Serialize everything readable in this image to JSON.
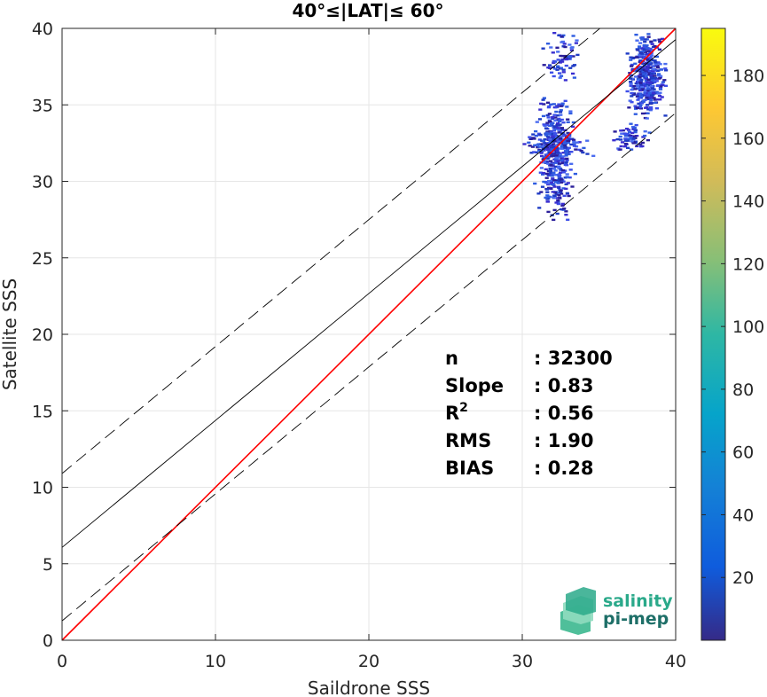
{
  "chart_data": {
    "type": "heatmap",
    "title": "40°≤|LAT|≤ 60°",
    "xlabel": "Saildrone SSS",
    "ylabel": "Satellite SSS",
    "xlim": [
      0,
      40
    ],
    "ylim": [
      0,
      40
    ],
    "xticks": [
      "0",
      "10",
      "20",
      "30",
      "40"
    ],
    "yticks": [
      "0",
      "5",
      "10",
      "15",
      "20",
      "25",
      "30",
      "35",
      "40"
    ],
    "grid": true,
    "colorbar": {
      "min": 0,
      "max": 195,
      "ticks": [
        "20",
        "40",
        "60",
        "80",
        "100",
        "120",
        "140",
        "160",
        "180"
      ],
      "colormap": "parula"
    },
    "lines": [
      {
        "role": "identity",
        "color": "#ff0000",
        "style": "solid",
        "intercept": 0,
        "slope": 1
      },
      {
        "role": "fit",
        "color": "#000000",
        "style": "solid",
        "intercept": 6.07,
        "slope": 0.83
      },
      {
        "role": "fit-plus",
        "color": "#000000",
        "style": "dashed",
        "intercept": 10.9,
        "slope": 0.83
      },
      {
        "role": "fit-minus",
        "color": "#000000",
        "style": "dashed",
        "intercept": 1.27,
        "slope": 0.83
      }
    ],
    "clusters": [
      {
        "x_range": [
          30.5,
          33.5
        ],
        "y_range": [
          27.5,
          36
        ],
        "density": "medium"
      },
      {
        "x_range": [
          29,
          35
        ],
        "y_range": [
          31.5,
          33.5
        ],
        "density": "low"
      },
      {
        "x_range": [
          31,
          34
        ],
        "y_range": [
          36,
          40
        ],
        "density": "sparse"
      },
      {
        "x_range": [
          36.5,
          39.5
        ],
        "y_range": [
          34,
          40
        ],
        "density": "medium"
      },
      {
        "x_range": [
          35.5,
          38.5
        ],
        "y_range": [
          32,
          34
        ],
        "density": "sparse"
      }
    ],
    "stats": [
      {
        "label": "n",
        "sep": ": ",
        "value": "32300"
      },
      {
        "label": "Slope",
        "sep": ": ",
        "value": "0.83"
      },
      {
        "label": "R",
        "sup": "2",
        "sep": ": ",
        "value": "0.56"
      },
      {
        "label": "RMS",
        "sep": ": ",
        "value": "1.90"
      },
      {
        "label": "BIAS",
        "sep": ": ",
        "value": "0.28"
      }
    ]
  },
  "logo": {
    "line1": "salinity",
    "line2": "pi-mep"
  }
}
